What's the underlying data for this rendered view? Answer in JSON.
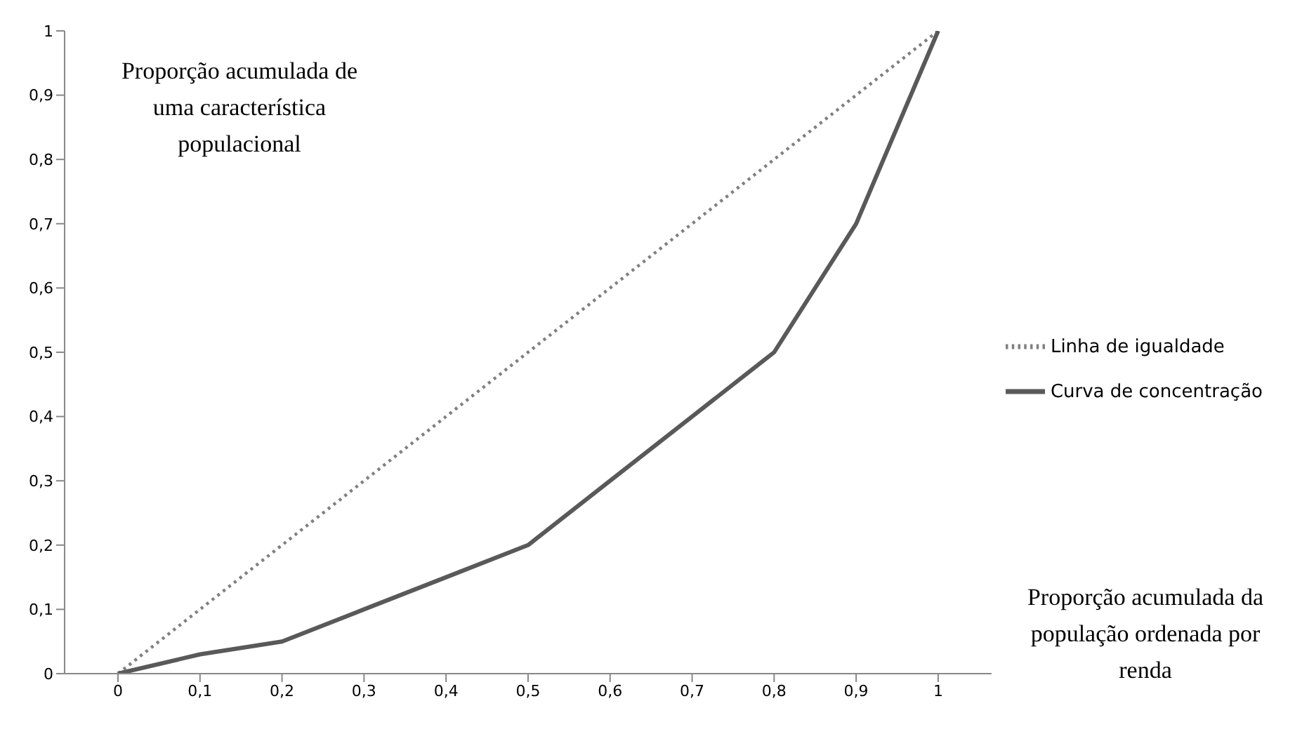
{
  "chart_data": {
    "type": "line",
    "ylabel": "Proporção acumulada de uma característica populacional",
    "xlabel": "Proporção acumulada da população ordenada por renda",
    "categories": [
      "0",
      "0,1",
      "0,2",
      "0,3",
      "0,4",
      "0,5",
      "0,6",
      "0,7",
      "0,8",
      "0,9",
      "1"
    ],
    "series": [
      {
        "name": "Linha de igualdade",
        "color": "#808080",
        "line_style": "dotted",
        "values": [
          0,
          0.1,
          0.2,
          0.3,
          0.4,
          0.5,
          0.6,
          0.7,
          0.8,
          0.9,
          1
        ]
      },
      {
        "name": "Curva de concentração",
        "color": "#595959",
        "line_style": "solid",
        "values": [
          0,
          0.03,
          0.05,
          0.1,
          0.15,
          0.2,
          0.3,
          0.4,
          0.5,
          0.7,
          1
        ]
      }
    ],
    "ylim": [
      0,
      1
    ],
    "yticks": [
      0,
      {
        "value": 0.1,
        "label": "0,1"
      },
      {
        "value": 0.2,
        "label": "0,2"
      },
      {
        "value": 0.3,
        "label": "0,3"
      },
      {
        "value": 0.4,
        "label": "0,4"
      },
      {
        "value": 0.5,
        "label": "0,5"
      },
      {
        "value": 0.6,
        "label": "0,6"
      },
      {
        "value": 0.7,
        "label": "0,7"
      },
      {
        "value": 0.8,
        "label": "0,8"
      },
      {
        "value": 0.9,
        "label": "0,9"
      },
      1
    ],
    "legend": "right",
    "marker": "none",
    "grid": false
  }
}
